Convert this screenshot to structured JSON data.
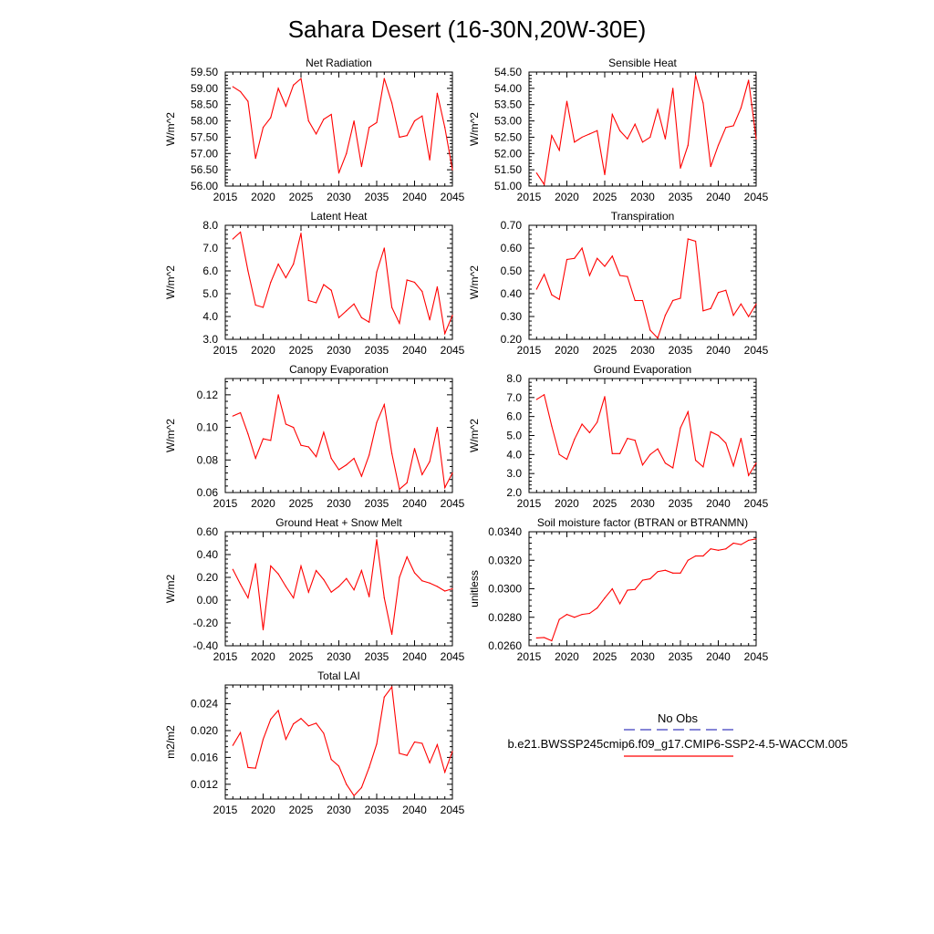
{
  "page": {
    "title": "Sahara Desert (16-30N,20W-30E)"
  },
  "legend": {
    "obs_label": "No Obs",
    "model_label": "b.e21.BWSSP245cmip6.f09_g17.CMIP6-SSP2-4.5-WACCM.005",
    "obs_color": "#3f3fbf",
    "model_color": "#ff0000"
  },
  "chart_data": [
    {
      "type": "line",
      "title": "Net Radiation",
      "ylabel": "W/m^2",
      "xlim": [
        2015,
        2045
      ],
      "ylim": [
        56.0,
        59.5
      ],
      "xticks": [
        2015,
        2020,
        2025,
        2030,
        2035,
        2040,
        2045
      ],
      "xtick_labels": [
        "2015",
        "2020",
        "2025",
        "2030",
        "2035",
        "2040",
        "2045"
      ],
      "yticks": [
        56.0,
        56.5,
        57.0,
        57.5,
        58.0,
        58.5,
        59.0,
        59.5
      ],
      "ytick_labels": [
        "56.00",
        "56.50",
        "57.00",
        "57.50",
        "58.00",
        "58.50",
        "59.00",
        "59.50"
      ],
      "series": [
        {
          "color": "#ff0000",
          "x": [
            2016,
            2017,
            2018,
            2019,
            2020,
            2021,
            2022,
            2023,
            2024,
            2025,
            2026,
            2027,
            2028,
            2029,
            2030,
            2031,
            2032,
            2033,
            2034,
            2035,
            2036,
            2037,
            2038,
            2039,
            2040,
            2041,
            2042,
            2043,
            2044,
            2045
          ],
          "values": [
            59.05,
            58.9,
            58.6,
            56.85,
            57.8,
            58.1,
            59.0,
            58.45,
            59.1,
            59.3,
            58.0,
            57.6,
            58.05,
            58.2,
            56.4,
            57.0,
            58.0,
            56.6,
            57.8,
            57.95,
            59.3,
            58.55,
            57.5,
            57.55,
            58.0,
            58.15,
            56.8,
            58.85,
            57.8,
            56.5
          ]
        }
      ]
    },
    {
      "type": "line",
      "title": "Sensible Heat",
      "ylabel": "W/m^2",
      "xlim": [
        2015,
        2045
      ],
      "ylim": [
        51.0,
        54.5
      ],
      "xticks": [
        2015,
        2020,
        2025,
        2030,
        2035,
        2040,
        2045
      ],
      "xtick_labels": [
        "2015",
        "2020",
        "2025",
        "2030",
        "2035",
        "2040",
        "2045"
      ],
      "yticks": [
        51.0,
        51.5,
        52.0,
        52.5,
        53.0,
        53.5,
        54.0,
        54.5
      ],
      "ytick_labels": [
        "51.00",
        "51.50",
        "52.00",
        "52.50",
        "53.00",
        "53.50",
        "54.00",
        "54.50"
      ],
      "series": [
        {
          "color": "#ff0000",
          "x": [
            2016,
            2017,
            2018,
            2019,
            2020,
            2021,
            2022,
            2023,
            2024,
            2025,
            2026,
            2027,
            2028,
            2029,
            2030,
            2031,
            2032,
            2033,
            2034,
            2035,
            2036,
            2037,
            2038,
            2039,
            2040,
            2041,
            2042,
            2043,
            2044,
            2045
          ],
          "values": [
            51.4,
            51.05,
            52.55,
            52.1,
            53.6,
            52.35,
            52.5,
            52.6,
            52.7,
            51.35,
            53.2,
            52.7,
            52.45,
            52.9,
            52.35,
            52.5,
            53.35,
            52.45,
            54.0,
            51.55,
            52.25,
            54.4,
            53.55,
            51.6,
            52.25,
            52.8,
            52.85,
            53.4,
            54.25,
            52.45
          ]
        }
      ]
    },
    {
      "type": "line",
      "title": "Latent Heat",
      "ylabel": "W/m^2",
      "xlim": [
        2015,
        2045
      ],
      "ylim": [
        3.0,
        8.0
      ],
      "xticks": [
        2015,
        2020,
        2025,
        2030,
        2035,
        2040,
        2045
      ],
      "xtick_labels": [
        "2015",
        "2020",
        "2025",
        "2030",
        "2035",
        "2040",
        "2045"
      ],
      "yticks": [
        3.0,
        4.0,
        5.0,
        6.0,
        7.0,
        8.0
      ],
      "ytick_labels": [
        "3.0",
        "4.0",
        "5.0",
        "6.0",
        "7.0",
        "8.0"
      ],
      "series": [
        {
          "color": "#ff0000",
          "x": [
            2016,
            2017,
            2018,
            2019,
            2020,
            2021,
            2022,
            2023,
            2024,
            2025,
            2026,
            2027,
            2028,
            2029,
            2030,
            2031,
            2032,
            2033,
            2034,
            2035,
            2036,
            2037,
            2038,
            2039,
            2040,
            2041,
            2042,
            2043,
            2044,
            2045
          ],
          "values": [
            7.4,
            7.7,
            6.0,
            4.5,
            4.4,
            5.5,
            6.3,
            5.7,
            6.3,
            7.65,
            4.7,
            4.6,
            5.4,
            5.15,
            3.95,
            4.25,
            4.55,
            3.95,
            3.75,
            5.95,
            7.0,
            4.4,
            3.7,
            5.6,
            5.5,
            5.1,
            3.85,
            5.3,
            3.25,
            4.05
          ]
        }
      ]
    },
    {
      "type": "line",
      "title": "Transpiration",
      "ylabel": "W/m^2",
      "xlim": [
        2015,
        2045
      ],
      "ylim": [
        0.2,
        0.7
      ],
      "xticks": [
        2015,
        2020,
        2025,
        2030,
        2035,
        2040,
        2045
      ],
      "xtick_labels": [
        "2015",
        "2020",
        "2025",
        "2030",
        "2035",
        "2040",
        "2045"
      ],
      "yticks": [
        0.2,
        0.3,
        0.4,
        0.5,
        0.6,
        0.7
      ],
      "ytick_labels": [
        "0.20",
        "0.30",
        "0.40",
        "0.50",
        "0.60",
        "0.70"
      ],
      "series": [
        {
          "color": "#ff0000",
          "x": [
            2016,
            2017,
            2018,
            2019,
            2020,
            2021,
            2022,
            2023,
            2024,
            2025,
            2026,
            2027,
            2028,
            2029,
            2030,
            2031,
            2032,
            2033,
            2034,
            2035,
            2036,
            2037,
            2038,
            2039,
            2040,
            2041,
            2042,
            2043,
            2044,
            2045
          ],
          "values": [
            0.42,
            0.485,
            0.395,
            0.375,
            0.55,
            0.555,
            0.6,
            0.48,
            0.555,
            0.52,
            0.565,
            0.48,
            0.475,
            0.37,
            0.37,
            0.24,
            0.205,
            0.305,
            0.37,
            0.38,
            0.64,
            0.63,
            0.325,
            0.335,
            0.405,
            0.415,
            0.305,
            0.355,
            0.3,
            0.355
          ]
        }
      ]
    },
    {
      "type": "line",
      "title": "Canopy Evaporation",
      "ylabel": "W/m^2",
      "xlim": [
        2015,
        2045
      ],
      "ylim": [
        0.06,
        0.13
      ],
      "xticks": [
        2015,
        2020,
        2025,
        2030,
        2035,
        2040,
        2045
      ],
      "xtick_labels": [
        "2015",
        "2020",
        "2025",
        "2030",
        "2035",
        "2040",
        "2045"
      ],
      "yticks": [
        0.06,
        0.08,
        0.1,
        0.12
      ],
      "ytick_labels": [
        "0.06",
        "0.08",
        "0.10",
        "0.12"
      ],
      "series": [
        {
          "color": "#ff0000",
          "x": [
            2016,
            2017,
            2018,
            2019,
            2020,
            2021,
            2022,
            2023,
            2024,
            2025,
            2026,
            2027,
            2028,
            2029,
            2030,
            2031,
            2032,
            2033,
            2034,
            2035,
            2036,
            2037,
            2038,
            2039,
            2040,
            2041,
            2042,
            2043,
            2044,
            2045
          ],
          "values": [
            0.107,
            0.109,
            0.096,
            0.081,
            0.093,
            0.092,
            0.12,
            0.102,
            0.1,
            0.089,
            0.088,
            0.082,
            0.097,
            0.081,
            0.074,
            0.077,
            0.081,
            0.07,
            0.083,
            0.103,
            0.114,
            0.084,
            0.062,
            0.066,
            0.087,
            0.071,
            0.079,
            0.1,
            0.063,
            0.072
          ]
        }
      ]
    },
    {
      "type": "line",
      "title": "Ground Evaporation",
      "ylabel": "W/m^2",
      "xlim": [
        2015,
        2045
      ],
      "ylim": [
        2.0,
        8.0
      ],
      "xticks": [
        2015,
        2020,
        2025,
        2030,
        2035,
        2040,
        2045
      ],
      "xtick_labels": [
        "2015",
        "2020",
        "2025",
        "2030",
        "2035",
        "2040",
        "2045"
      ],
      "yticks": [
        2.0,
        3.0,
        4.0,
        5.0,
        6.0,
        7.0,
        8.0
      ],
      "ytick_labels": [
        "2.0",
        "3.0",
        "4.0",
        "5.0",
        "6.0",
        "7.0",
        "8.0"
      ],
      "series": [
        {
          "color": "#ff0000",
          "x": [
            2016,
            2017,
            2018,
            2019,
            2020,
            2021,
            2022,
            2023,
            2024,
            2025,
            2026,
            2027,
            2028,
            2029,
            2030,
            2031,
            2032,
            2033,
            2034,
            2035,
            2036,
            2037,
            2038,
            2039,
            2040,
            2041,
            2042,
            2043,
            2044,
            2045
          ],
          "values": [
            6.9,
            7.15,
            5.5,
            4.0,
            3.75,
            4.8,
            5.6,
            5.15,
            5.7,
            7.05,
            4.05,
            4.05,
            4.85,
            4.75,
            3.45,
            4.0,
            4.3,
            3.55,
            3.3,
            5.4,
            6.25,
            3.7,
            3.35,
            5.2,
            5.0,
            4.6,
            3.4,
            4.85,
            2.9,
            3.55
          ]
        }
      ]
    },
    {
      "type": "line",
      "title": "Ground Heat + Snow Melt",
      "ylabel": "W/m2",
      "xlim": [
        2015,
        2045
      ],
      "ylim": [
        -0.4,
        0.6
      ],
      "xticks": [
        2015,
        2020,
        2025,
        2030,
        2035,
        2040,
        2045
      ],
      "xtick_labels": [
        "2015",
        "2020",
        "2025",
        "2030",
        "2035",
        "2040",
        "2045"
      ],
      "yticks": [
        -0.4,
        -0.2,
        0.0,
        0.2,
        0.4,
        0.6
      ],
      "ytick_labels": [
        "-0.40",
        "-0.20",
        "0.00",
        "0.20",
        "0.40",
        "0.60"
      ],
      "series": [
        {
          "color": "#ff0000",
          "x": [
            2016,
            2017,
            2018,
            2019,
            2020,
            2021,
            2022,
            2023,
            2024,
            2025,
            2026,
            2027,
            2028,
            2029,
            2030,
            2031,
            2032,
            2033,
            2034,
            2035,
            2036,
            2037,
            2038,
            2039,
            2040,
            2041,
            2042,
            2043,
            2044,
            2045
          ],
          "values": [
            0.27,
            0.14,
            0.02,
            0.32,
            -0.26,
            0.3,
            0.23,
            0.12,
            0.02,
            0.3,
            0.07,
            0.26,
            0.18,
            0.07,
            0.12,
            0.19,
            0.09,
            0.26,
            0.03,
            0.53,
            0.02,
            -0.3,
            0.2,
            0.38,
            0.24,
            0.17,
            0.15,
            0.12,
            0.08,
            0.1
          ]
        }
      ]
    },
    {
      "type": "line",
      "title": "Soil moisture factor (BTRAN or BTRANMN)",
      "ylabel": "unitless",
      "xlim": [
        2015,
        2045
      ],
      "ylim": [
        0.026,
        0.034
      ],
      "xticks": [
        2015,
        2020,
        2025,
        2030,
        2035,
        2040,
        2045
      ],
      "xtick_labels": [
        "2015",
        "2020",
        "2025",
        "2030",
        "2035",
        "2040",
        "2045"
      ],
      "yticks": [
        0.026,
        0.028,
        0.03,
        0.032,
        0.034
      ],
      "ytick_labels": [
        "0.0260",
        "0.0280",
        "0.0300",
        "0.0320",
        "0.0340"
      ],
      "series": [
        {
          "color": "#ff0000",
          "x": [
            2016,
            2017,
            2018,
            2019,
            2020,
            2021,
            2022,
            2023,
            2024,
            2025,
            2026,
            2027,
            2028,
            2029,
            2030,
            2031,
            2032,
            2033,
            2034,
            2035,
            2036,
            2037,
            2038,
            2039,
            2040,
            2041,
            2042,
            2043,
            2044,
            2045
          ],
          "values": [
            0.02655,
            0.02658,
            0.02635,
            0.02785,
            0.0282,
            0.028,
            0.0282,
            0.02827,
            0.02865,
            0.02935,
            0.03,
            0.02895,
            0.0299,
            0.02995,
            0.0306,
            0.0307,
            0.0312,
            0.0313,
            0.0311,
            0.0311,
            0.032,
            0.0323,
            0.0323,
            0.0328,
            0.0327,
            0.0328,
            0.0332,
            0.0331,
            0.0334,
            0.0335
          ]
        }
      ]
    },
    {
      "type": "line",
      "title": "Total LAI",
      "ylabel": "m2/m2",
      "xlim": [
        2015,
        2045
      ],
      "ylim": [
        0.0098,
        0.0268
      ],
      "xticks": [
        2015,
        2020,
        2025,
        2030,
        2035,
        2040,
        2045
      ],
      "xtick_labels": [
        "2015",
        "2020",
        "2025",
        "2030",
        "2035",
        "2040",
        "2045"
      ],
      "yticks": [
        0.012,
        0.016,
        0.02,
        0.024
      ],
      "ytick_labels": [
        "0.012",
        "0.016",
        "0.020",
        "0.024"
      ],
      "series": [
        {
          "color": "#ff0000",
          "x": [
            2016,
            2017,
            2018,
            2019,
            2020,
            2021,
            2022,
            2023,
            2024,
            2025,
            2026,
            2027,
            2028,
            2029,
            2030,
            2031,
            2032,
            2033,
            2034,
            2035,
            2036,
            2037,
            2038,
            2039,
            2040,
            2041,
            2042,
            2043,
            2044,
            2045
          ],
          "values": [
            0.0178,
            0.0197,
            0.0145,
            0.0144,
            0.0187,
            0.0217,
            0.023,
            0.0187,
            0.021,
            0.0218,
            0.0207,
            0.0211,
            0.0196,
            0.0157,
            0.0147,
            0.012,
            0.0103,
            0.0115,
            0.0145,
            0.018,
            0.025,
            0.0265,
            0.0166,
            0.0163,
            0.0183,
            0.0181,
            0.0152,
            0.0179,
            0.0138,
            0.0169
          ]
        }
      ]
    }
  ]
}
